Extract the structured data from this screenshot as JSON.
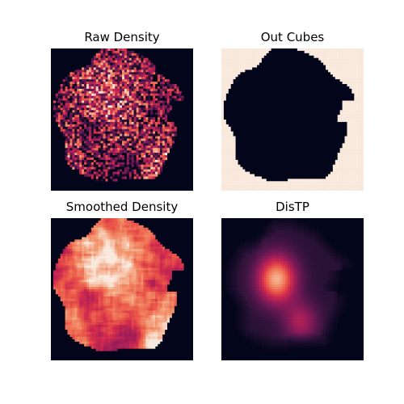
{
  "figure": {
    "background": "#ffffff",
    "colormap_name": "rocket"
  },
  "chart_data": [
    {
      "type": "heatmap",
      "title": "Raw Density",
      "kind": "raw",
      "grid": false,
      "colormap": "rocket"
    },
    {
      "type": "heatmap",
      "title": "Out Cubes",
      "kind": "mask",
      "grid": false,
      "colors": {
        "outside": "#faeade",
        "inside": "#03051a"
      }
    },
    {
      "type": "heatmap",
      "title": "Smoothed Density",
      "kind": "smoothed",
      "grid": false,
      "colormap": "rocket"
    },
    {
      "type": "heatmap",
      "title": "DisTP",
      "kind": "distance",
      "grid": false,
      "colormap": "rocket"
    }
  ]
}
